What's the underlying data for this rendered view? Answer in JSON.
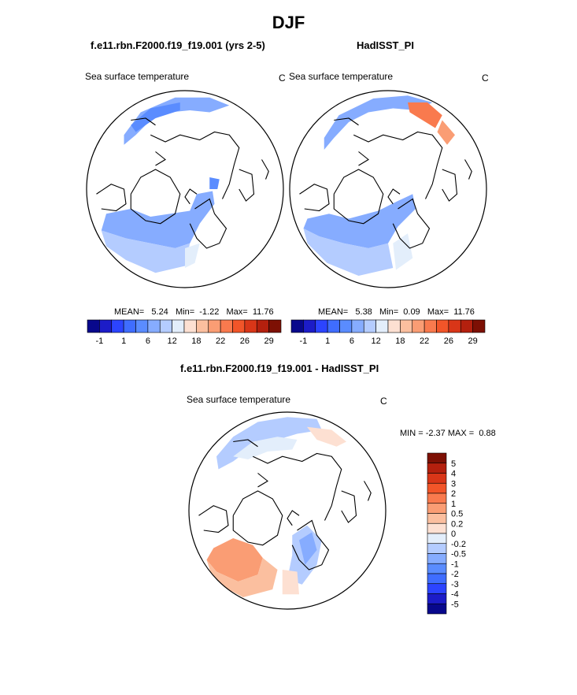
{
  "title": "DJF",
  "panels": [
    {
      "id": "model",
      "title": "f.e11.rbn.F2000.f19_f19.001 (yrs 2-5)",
      "variable": "Sea surface temperature",
      "units": "C",
      "stats": {
        "mean_label": "MEAN=",
        "mean": "5.24",
        "min_label": "Min=",
        "min": "-1.22",
        "max_label": "Max=",
        "max": "11.76"
      }
    },
    {
      "id": "obs",
      "title": "HadISST_PI",
      "variable": "Sea surface temperature",
      "units": "C",
      "stats": {
        "mean_label": "MEAN=",
        "mean": "5.38",
        "min_label": "Min=",
        "min": "0.09",
        "max_label": "Max=",
        "max": "11.76"
      }
    }
  ],
  "diff_panel": {
    "title": "f.e11.rbn.F2000.f19_f19.001 - HadISST_PI",
    "variable": "Sea surface temperature",
    "units": "C",
    "min_label": "MIN =",
    "min": "-2.37",
    "max_label": "MAX =",
    "max": "0.88"
  },
  "chart_data": [
    {
      "type": "heatmap",
      "projection": "north polar stereographic",
      "title": "f.e11.rbn.F2000.f19_f19.001 (yrs 2-5)",
      "variable": "Sea surface temperature",
      "units": "C",
      "colorbar": {
        "levels": [
          -1,
          1,
          6,
          12,
          18,
          22,
          26,
          29
        ],
        "colors": [
          "#08088c",
          "#1c1cc8",
          "#2c44ff",
          "#3f6dff",
          "#5a8cff",
          "#86acff",
          "#b4ccff",
          "#e3eefb",
          "#fde0d2",
          "#fbbf9f",
          "#fa9d74",
          "#f97a4e",
          "#f25529",
          "#d93618",
          "#b4200e",
          "#7d1004"
        ]
      }
    },
    {
      "type": "heatmap",
      "projection": "north polar stereographic",
      "title": "HadISST_PI",
      "variable": "Sea surface temperature",
      "units": "C",
      "colorbar": {
        "levels": [
          -1,
          1,
          6,
          12,
          18,
          22,
          26,
          29
        ],
        "colors": [
          "#08088c",
          "#1c1cc8",
          "#2c44ff",
          "#3f6dff",
          "#5a8cff",
          "#86acff",
          "#b4ccff",
          "#e3eefb",
          "#fde0d2",
          "#fbbf9f",
          "#fa9d74",
          "#f97a4e",
          "#f25529",
          "#d93618",
          "#b4200e",
          "#7d1004"
        ]
      }
    },
    {
      "type": "heatmap",
      "projection": "north polar stereographic",
      "title": "f.e11.rbn.F2000.f19_f19.001 - HadISST_PI",
      "variable": "Sea surface temperature",
      "units": "C",
      "colorbar": {
        "orientation": "vertical",
        "levels": [
          "5",
          "4",
          "3",
          "2",
          "1",
          "0.5",
          "0.2",
          "0",
          "-0.2",
          "-0.5",
          "-1",
          "-2",
          "-3",
          "-4",
          "-5"
        ],
        "colors": [
          "#7d1004",
          "#b4200e",
          "#d93618",
          "#f25529",
          "#f97a4e",
          "#fa9d74",
          "#fbbf9f",
          "#fde0d2",
          "#e3eefb",
          "#b4ccff",
          "#86acff",
          "#5a8cff",
          "#3f6dff",
          "#2c44ff",
          "#1c1cc8",
          "#08088c"
        ]
      }
    }
  ]
}
